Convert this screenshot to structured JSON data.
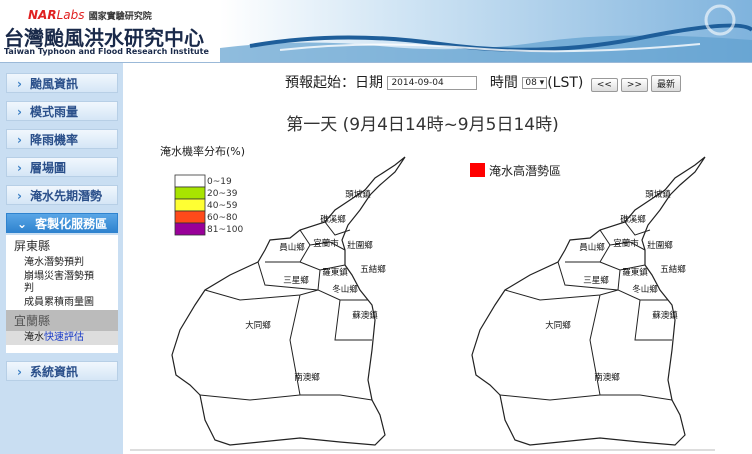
{
  "header": {
    "brand_nar": "NAR",
    "brand_labs": "Labs",
    "org": "國家實驗研究院",
    "title": "台灣颱風洪水研究中心",
    "subtitle": "Taiwan Typhoon and Flood Research Institute"
  },
  "menu": [
    "颱風資訊",
    "模式雨量",
    "降雨機率",
    "層場圖",
    "淹水先期潛勢",
    "客製化服務區"
  ],
  "submenu": {
    "county_1": "屏東縣",
    "items_1": [
      "淹水潛勢預判",
      "崩塌災害潛勢預判",
      "成員累積雨量圖"
    ],
    "county_2": "宜蘭縣",
    "selected_item": [
      "淹水",
      "快速評估"
    ]
  },
  "menu_bottom": "系統資訊",
  "controls": {
    "start_label": "預報起始：日期",
    "date": "2014-09-04",
    "time_label": "時間",
    "hour": "08",
    "tz": "(LST)",
    "prev": "<<",
    "next": ">>",
    "latest": "最新"
  },
  "forecast_title": "第一天 (9月4日14時~9月5日14時)",
  "probability_map": {
    "legend_title": "淹水機率分布(%)",
    "legend": [
      {
        "label": "0~19",
        "color": "#ffffff"
      },
      {
        "label": "20~39",
        "color": "#a8e400"
      },
      {
        "label": "40~59",
        "color": "#ffff33"
      },
      {
        "label": "60~80",
        "color": "#ff4a1a"
      },
      {
        "label": "81~100",
        "color": "#990099"
      }
    ]
  },
  "potential_map": {
    "legend": {
      "label": "淹水高潛勢區",
      "color": "#ff0000"
    }
  },
  "townships": [
    "頭城鎮",
    "礁溪鄉",
    "員山鄉",
    "宜蘭市",
    "壯圍鄉",
    "羅東鎮",
    "五結鄉",
    "三星鄉",
    "冬山鄉",
    "蘇澳鎮",
    "大同鄉",
    "南澳鄉"
  ]
}
